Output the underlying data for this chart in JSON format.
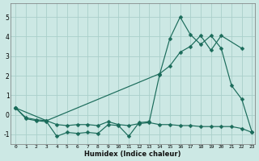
{
  "xlabel": "Humidex (Indice chaleur)",
  "bg_color": "#cce8e4",
  "grid_color": "#aacfca",
  "line_color": "#1a6b5a",
  "xlim_min": -0.5,
  "xlim_max": 23.3,
  "ylim_min": -1.5,
  "ylim_max": 5.7,
  "yticks": [
    -1,
    0,
    1,
    2,
    3,
    4,
    5
  ],
  "xticks": [
    0,
    1,
    2,
    3,
    4,
    5,
    6,
    7,
    8,
    9,
    10,
    11,
    12,
    13,
    14,
    15,
    16,
    17,
    18,
    19,
    20,
    21,
    22,
    23
  ],
  "line1_x": [
    0,
    1,
    2,
    3,
    4,
    5,
    6,
    7,
    8,
    9,
    10,
    11,
    12,
    13,
    14,
    15,
    16,
    17,
    18,
    19,
    20,
    21,
    22,
    23
  ],
  "line1_y": [
    0.35,
    -0.2,
    -0.3,
    -0.35,
    -1.1,
    -0.9,
    -0.95,
    -0.9,
    -0.95,
    -0.5,
    -0.55,
    -1.1,
    -0.4,
    -0.35,
    2.05,
    3.9,
    5.0,
    4.1,
    3.6,
    4.05,
    3.4,
    1.5,
    0.8,
    -0.9
  ],
  "line2_x": [
    0,
    1,
    2,
    3,
    4,
    5,
    6,
    7,
    8,
    9,
    10,
    11,
    12,
    13,
    14,
    15,
    16,
    17,
    18,
    19,
    20,
    21,
    22,
    23
  ],
  "line2_y": [
    0.35,
    -0.15,
    -0.25,
    -0.3,
    -0.5,
    -0.55,
    -0.5,
    -0.5,
    -0.55,
    -0.35,
    -0.5,
    -0.55,
    -0.45,
    -0.4,
    -0.5,
    -0.5,
    -0.55,
    -0.55,
    -0.6,
    -0.6,
    -0.6,
    -0.6,
    -0.7,
    -0.9
  ],
  "line3_x": [
    0,
    3,
    14,
    15,
    16,
    17,
    18,
    19,
    20,
    22
  ],
  "line3_y": [
    0.35,
    -0.3,
    2.1,
    2.5,
    3.2,
    3.5,
    4.05,
    3.3,
    4.05,
    3.4
  ]
}
